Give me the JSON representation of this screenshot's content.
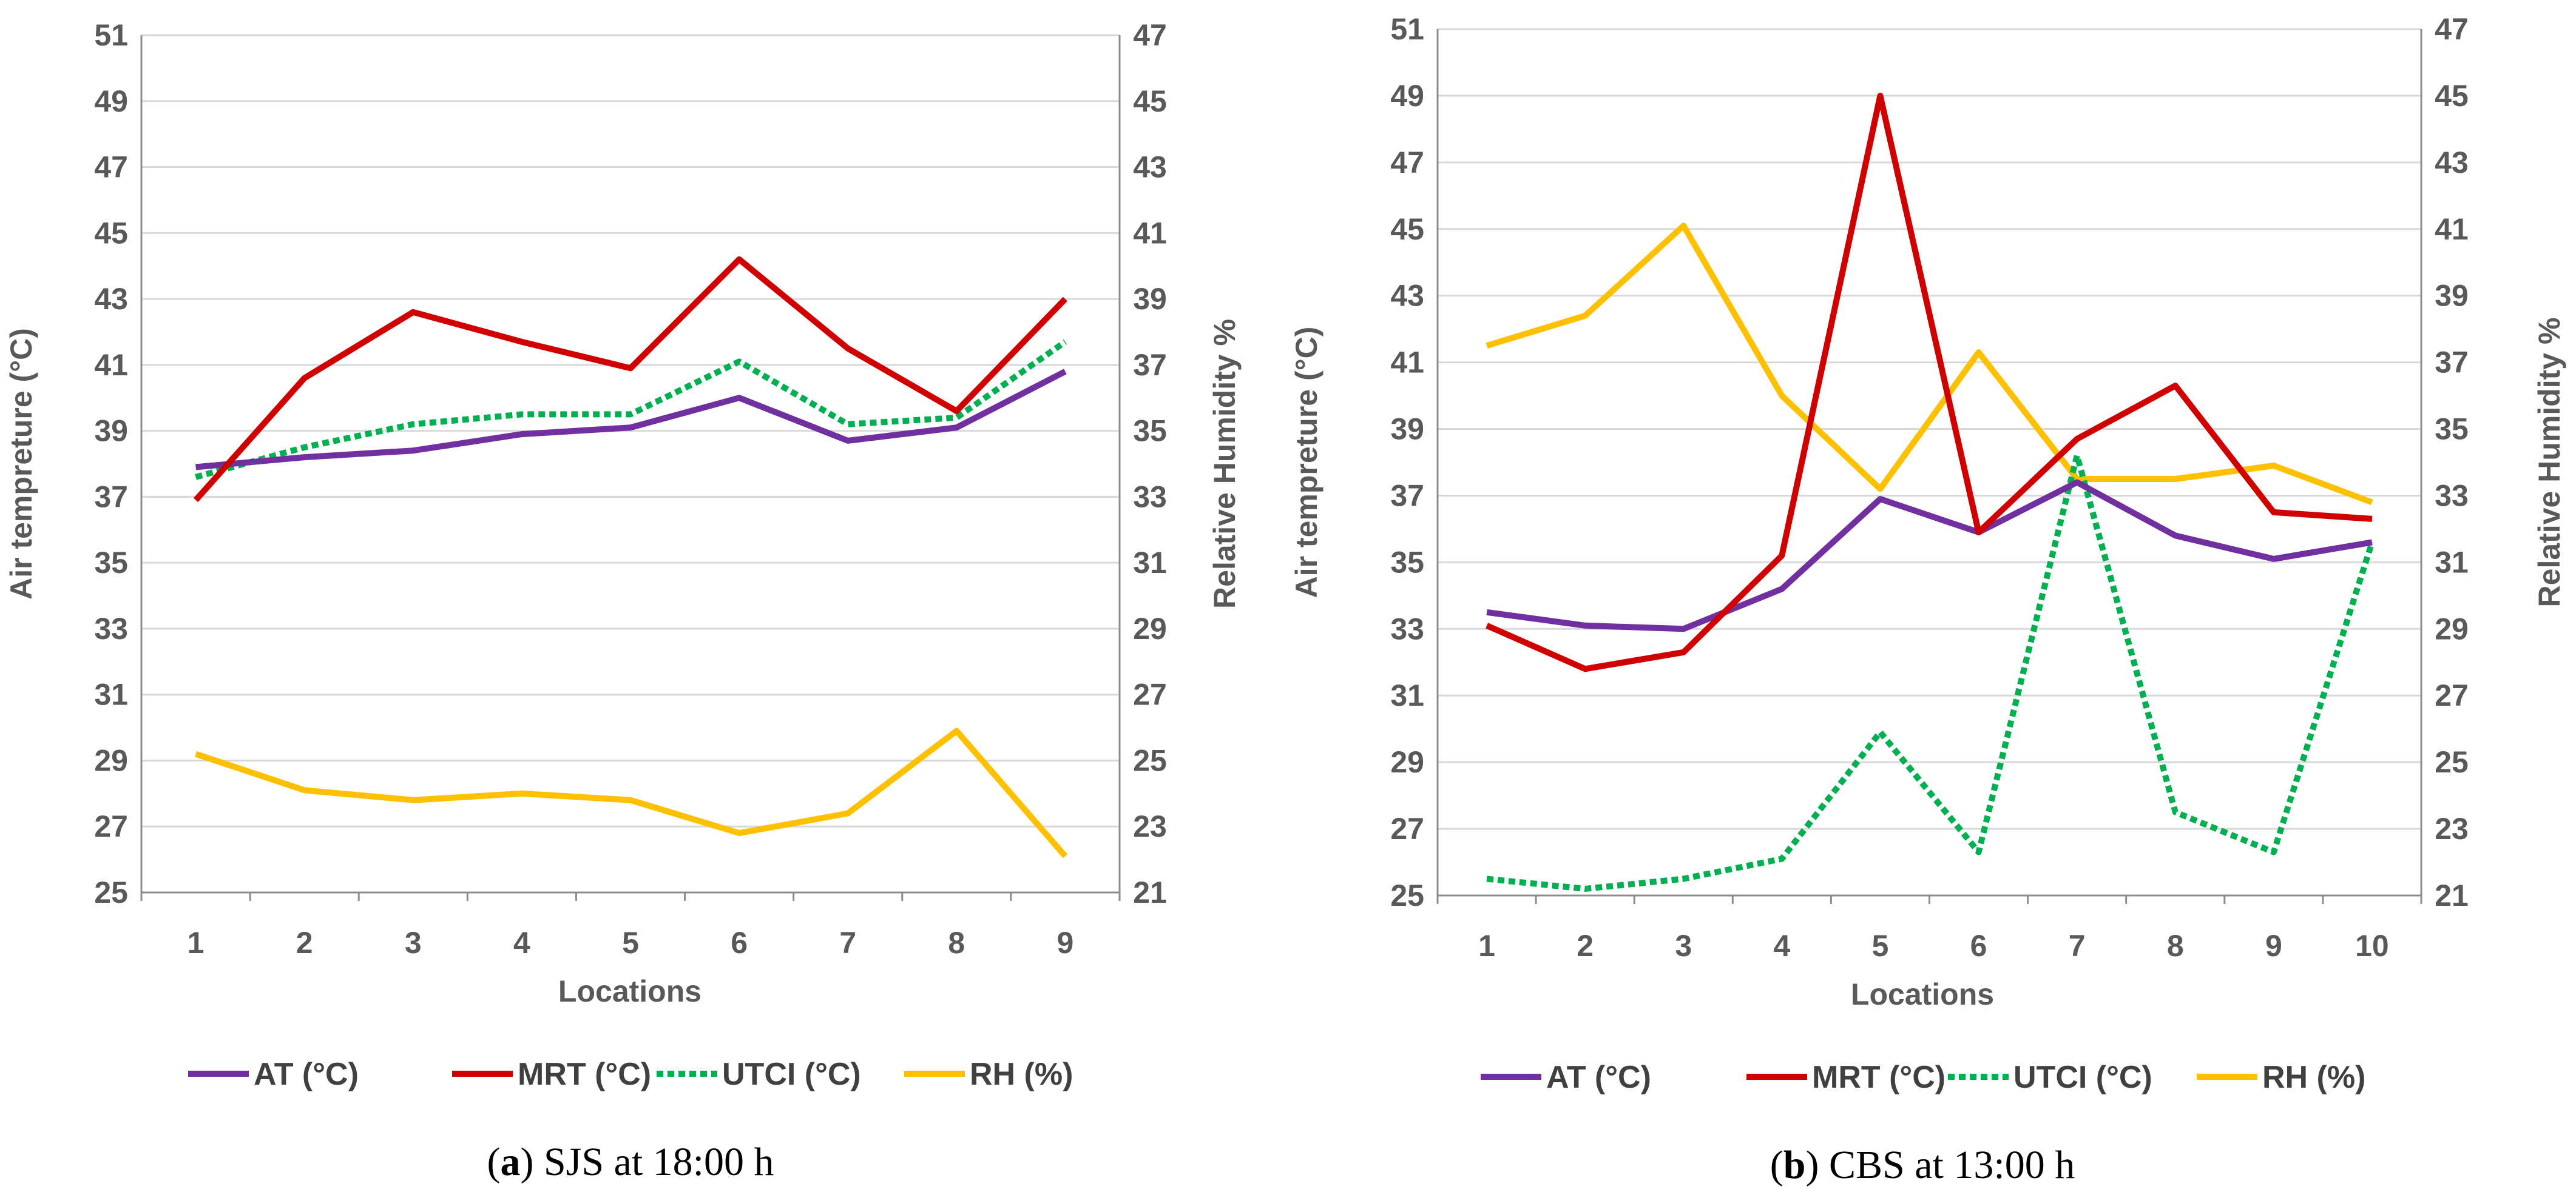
{
  "chart_data": [
    {
      "type": "line",
      "panel": "a",
      "caption_letter": "a",
      "caption_text": "SJS at 18:00 h",
      "xlabel": "Locations",
      "ylabel": "Air tempreture (°C)",
      "y2label": "Relative Humidity %",
      "ylim": [
        25,
        51
      ],
      "y2lim": [
        21,
        47
      ],
      "yticks": [
        "25",
        "27",
        "29",
        "31",
        "33",
        "35",
        "37",
        "39",
        "41",
        "43",
        "45",
        "47",
        "49",
        "51"
      ],
      "y2ticks": [
        "21",
        "23",
        "25",
        "27",
        "29",
        "31",
        "33",
        "35",
        "37",
        "39",
        "41",
        "43",
        "45",
        "47"
      ],
      "categories": [
        "1",
        "2",
        "3",
        "4",
        "5",
        "6",
        "7",
        "8",
        "9"
      ],
      "series": [
        {
          "name": "AT (°C)",
          "axis": "left",
          "color": "#7030A0",
          "dashed": false,
          "values": [
            37.9,
            38.2,
            38.4,
            38.9,
            39.1,
            40.0,
            38.7,
            39.1,
            40.8
          ]
        },
        {
          "name": "MRT (°C)",
          "axis": "left",
          "color": "#D00000",
          "dashed": false,
          "values": [
            36.9,
            40.6,
            42.6,
            41.7,
            40.9,
            44.2,
            41.5,
            39.6,
            43.0
          ]
        },
        {
          "name": "UTCI (°C)",
          "axis": "left",
          "color": "#00B050",
          "dashed": true,
          "values": [
            37.6,
            38.5,
            39.2,
            39.5,
            39.5,
            41.1,
            39.2,
            39.4,
            41.7
          ]
        },
        {
          "name": "RH (%)",
          "axis": "right",
          "color": "#FFC000",
          "dashed": false,
          "values": [
            25.2,
            24.1,
            23.8,
            24.0,
            23.8,
            22.8,
            23.4,
            25.9,
            22.1
          ]
        }
      ]
    },
    {
      "type": "line",
      "panel": "b",
      "caption_letter": "b",
      "caption_text": "CBS at 13:00 h",
      "xlabel": "Locations",
      "ylabel": "Air tempreture (°C)",
      "y2label": "Relative Humidity %",
      "ylim": [
        25,
        51
      ],
      "y2lim": [
        21,
        47
      ],
      "yticks": [
        "25",
        "27",
        "29",
        "31",
        "33",
        "35",
        "37",
        "39",
        "41",
        "43",
        "45",
        "47",
        "49",
        "51"
      ],
      "y2ticks": [
        "21",
        "23",
        "25",
        "27",
        "29",
        "31",
        "33",
        "35",
        "37",
        "39",
        "41",
        "43",
        "45",
        "47"
      ],
      "categories": [
        "1",
        "2",
        "3",
        "4",
        "5",
        "6",
        "7",
        "8",
        "9",
        "10"
      ],
      "series": [
        {
          "name": "AT (°C)",
          "axis": "left",
          "color": "#7030A0",
          "dashed": false,
          "values": [
            33.5,
            33.1,
            33.0,
            34.2,
            36.9,
            35.9,
            37.4,
            35.8,
            35.1,
            35.6
          ]
        },
        {
          "name": "MRT (°C)",
          "axis": "left",
          "color": "#D00000",
          "dashed": false,
          "values": [
            33.1,
            31.8,
            32.3,
            35.2,
            49.0,
            35.9,
            38.7,
            40.3,
            36.5,
            36.3
          ]
        },
        {
          "name": "UTCI (°C)",
          "axis": "left",
          "color": "#00B050",
          "dashed": true,
          "values": [
            25.5,
            25.2,
            25.5,
            26.1,
            29.9,
            26.3,
            38.2,
            27.5,
            26.3,
            35.6
          ]
        },
        {
          "name": "RH (%)",
          "axis": "right",
          "color": "#FFC000",
          "dashed": false,
          "values": [
            37.5,
            38.4,
            41.1,
            36.0,
            33.2,
            37.3,
            33.5,
            33.5,
            33.9,
            32.8
          ]
        }
      ]
    }
  ]
}
